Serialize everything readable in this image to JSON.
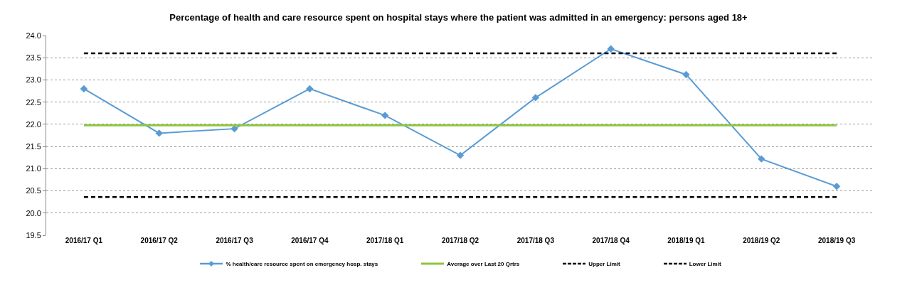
{
  "chart_data": {
    "type": "line",
    "title": "Percentage of health and care resource spent on hospital stays where the patient was admitted in an emergency: persons aged 18+",
    "categories": [
      "2016/17 Q1",
      "2016/17 Q2",
      "2016/17 Q3",
      "2016/17 Q4",
      "2017/18 Q1",
      "2017/18 Q2",
      "2017/18 Q3",
      "2017/18 Q4",
      "2018/19 Q1",
      "2018/19 Q2",
      "2018/19 Q3"
    ],
    "series": [
      {
        "name": "% health/care resource spent on emergency hosp. stays",
        "color": "#5b9bd5",
        "marker": "diamond",
        "line_style": "solid",
        "values": [
          22.8,
          21.8,
          21.9,
          22.8,
          22.2,
          21.3,
          22.6,
          23.7,
          23.12,
          21.22,
          20.6
        ]
      },
      {
        "name": "Average over Last 20 Qrtrs",
        "color": "#8dc63f",
        "marker": "none",
        "line_style": "solid",
        "values": [
          21.98,
          21.98,
          21.98,
          21.98,
          21.98,
          21.98,
          21.98,
          21.98,
          21.98,
          21.98,
          21.98
        ]
      },
      {
        "name": "Upper Limit",
        "color": "#000000",
        "marker": "none",
        "line_style": "dashed",
        "values": [
          23.6,
          23.6,
          23.6,
          23.6,
          23.6,
          23.6,
          23.6,
          23.6,
          23.6,
          23.6,
          23.6
        ]
      },
      {
        "name": "Lower Limit",
        "color": "#000000",
        "marker": "none",
        "line_style": "dashed",
        "values": [
          20.36,
          20.36,
          20.36,
          20.36,
          20.36,
          20.36,
          20.36,
          20.36,
          20.36,
          20.36,
          20.36
        ]
      }
    ],
    "ylim": [
      19.5,
      24.0
    ],
    "yticks": [
      {
        "value": 19.5,
        "label": "19.5"
      },
      {
        "value": 20,
        "label": "20.0"
      },
      {
        "value": 20.5,
        "label": "20.5"
      },
      {
        "value": 21,
        "label": "21.0"
      },
      {
        "value": 21.5,
        "label": "21.5"
      },
      {
        "value": 22,
        "label": "22.0"
      },
      {
        "value": 22.5,
        "label": "22.5"
      },
      {
        "value": 23,
        "label": "23.0"
      },
      {
        "value": 23.5,
        "label": "23.5"
      },
      {
        "value": 24,
        "label": "24.0"
      }
    ],
    "grid": "y",
    "legend": "bottom"
  }
}
